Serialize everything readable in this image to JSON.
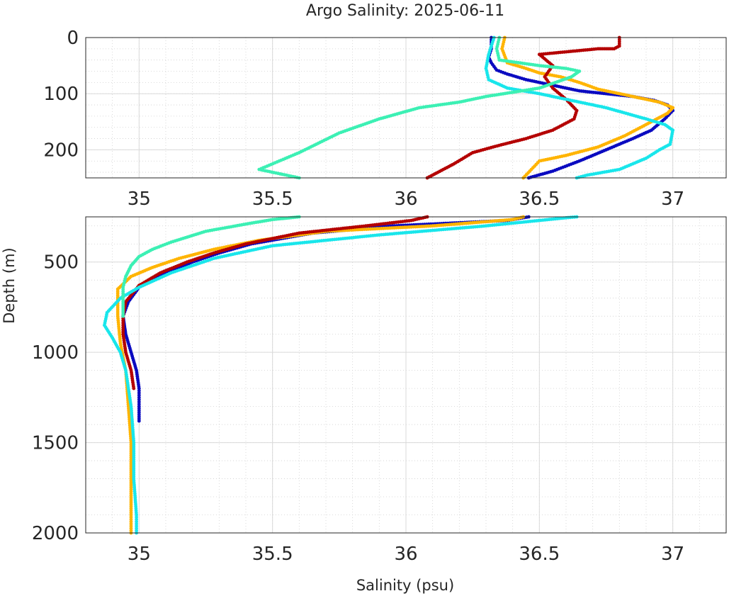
{
  "chart_data": {
    "type": "scatter",
    "title": "Argo Salinity: 2025-06-11",
    "xlabel": "Salinity (psu)",
    "ylabel": "Depth (m)",
    "xlim": [
      34.8,
      37.2
    ],
    "grid": true,
    "minor_grid": true,
    "colors": {
      "navy": "#0a0ac0",
      "orange": "#ffb400",
      "red": "#b40000",
      "aqua": "#19e6eb",
      "mint": "#3cf0b4"
    },
    "panels": [
      {
        "name": "top",
        "ylim": [
          0,
          250
        ],
        "y_reversed": true,
        "yticks": [
          "0",
          "100",
          "200"
        ],
        "ytick_values": [
          0,
          100,
          200
        ],
        "xticks": [
          "35",
          "35.5",
          "36",
          "36.5",
          "37"
        ],
        "xtick_values": [
          35,
          35.5,
          36,
          36.5,
          37
        ]
      },
      {
        "name": "bottom",
        "ylim": [
          250,
          2000
        ],
        "y_reversed": true,
        "yticks": [
          "500",
          "1000",
          "1500",
          "2000"
        ],
        "ytick_values": [
          500,
          1000,
          1500,
          2000
        ],
        "xticks": [
          "35",
          "35.5",
          "36",
          "36.5",
          "37"
        ],
        "xtick_values": [
          35,
          35.5,
          36,
          36.5,
          37
        ]
      }
    ],
    "series": [
      {
        "color": "#0a0ac0",
        "points": [
          [
            36.32,
            0
          ],
          [
            36.32,
            20
          ],
          [
            36.31,
            35
          ],
          [
            36.32,
            45
          ],
          [
            36.34,
            58
          ],
          [
            36.38,
            65
          ],
          [
            36.45,
            75
          ],
          [
            36.55,
            85
          ],
          [
            36.65,
            95
          ],
          [
            36.75,
            100
          ],
          [
            36.85,
            105
          ],
          [
            36.93,
            112
          ],
          [
            36.98,
            120
          ],
          [
            37.0,
            130
          ],
          [
            36.97,
            145
          ],
          [
            36.92,
            165
          ],
          [
            36.85,
            180
          ],
          [
            36.75,
            200
          ],
          [
            36.65,
            220
          ],
          [
            36.55,
            238
          ],
          [
            36.46,
            250
          ],
          [
            36.38,
            270
          ],
          [
            35.95,
            300
          ],
          [
            35.65,
            340
          ],
          [
            35.42,
            400
          ],
          [
            35.3,
            450
          ],
          [
            35.2,
            500
          ],
          [
            35.1,
            560
          ],
          [
            35.0,
            640
          ],
          [
            34.96,
            720
          ],
          [
            34.94,
            800
          ],
          [
            34.95,
            900
          ],
          [
            34.97,
            1000
          ],
          [
            34.99,
            1100
          ],
          [
            35.0,
            1200
          ],
          [
            35.0,
            1300
          ],
          [
            35.0,
            1380
          ]
        ]
      },
      {
        "color": "#ffb400",
        "points": [
          [
            36.37,
            0
          ],
          [
            36.36,
            20
          ],
          [
            36.38,
            45
          ],
          [
            36.45,
            55
          ],
          [
            36.5,
            63
          ],
          [
            36.58,
            70
          ],
          [
            36.65,
            80
          ],
          [
            36.72,
            92
          ],
          [
            36.85,
            105
          ],
          [
            36.95,
            115
          ],
          [
            37.0,
            125
          ],
          [
            36.98,
            135
          ],
          [
            36.92,
            150
          ],
          [
            36.82,
            175
          ],
          [
            36.72,
            195
          ],
          [
            36.6,
            210
          ],
          [
            36.5,
            220
          ],
          [
            36.47,
            235
          ],
          [
            36.44,
            250
          ],
          [
            36.4,
            265
          ],
          [
            36.1,
            300
          ],
          [
            35.7,
            330
          ],
          [
            35.45,
            380
          ],
          [
            35.28,
            430
          ],
          [
            35.15,
            480
          ],
          [
            35.05,
            530
          ],
          [
            34.97,
            580
          ],
          [
            34.92,
            650
          ],
          [
            34.92,
            800
          ],
          [
            34.93,
            950
          ],
          [
            34.95,
            1100
          ],
          [
            34.96,
            1300
          ],
          [
            34.97,
            1500
          ],
          [
            34.97,
            1700
          ],
          [
            34.97,
            1900
          ],
          [
            34.97,
            2000
          ]
        ]
      },
      {
        "color": "#b40000",
        "points": [
          [
            36.8,
            0
          ],
          [
            36.8,
            15
          ],
          [
            36.78,
            20
          ],
          [
            36.72,
            20
          ],
          [
            36.5,
            30
          ],
          [
            36.55,
            50
          ],
          [
            36.52,
            70
          ],
          [
            36.55,
            90
          ],
          [
            36.6,
            110
          ],
          [
            36.64,
            130
          ],
          [
            36.63,
            145
          ],
          [
            36.55,
            165
          ],
          [
            36.45,
            180
          ],
          [
            36.35,
            192
          ],
          [
            36.25,
            205
          ],
          [
            36.18,
            225
          ],
          [
            36.12,
            240
          ],
          [
            36.08,
            250
          ],
          [
            36.02,
            270
          ],
          [
            35.85,
            300
          ],
          [
            35.6,
            340
          ],
          [
            35.4,
            400
          ],
          [
            35.28,
            450
          ],
          [
            35.18,
            500
          ],
          [
            35.08,
            560
          ],
          [
            35.0,
            630
          ],
          [
            34.95,
            720
          ],
          [
            34.94,
            800
          ],
          [
            34.94,
            900
          ],
          [
            34.95,
            1000
          ],
          [
            34.97,
            1100
          ],
          [
            34.98,
            1200
          ]
        ]
      },
      {
        "color": "#19e6eb",
        "points": [
          [
            36.33,
            0
          ],
          [
            36.31,
            30
          ],
          [
            36.3,
            55
          ],
          [
            36.31,
            75
          ],
          [
            36.38,
            90
          ],
          [
            36.5,
            100
          ],
          [
            36.6,
            110
          ],
          [
            36.75,
            125
          ],
          [
            36.9,
            145
          ],
          [
            36.97,
            155
          ],
          [
            37.0,
            165
          ],
          [
            36.99,
            190
          ],
          [
            36.95,
            200
          ],
          [
            36.9,
            215
          ],
          [
            36.8,
            235
          ],
          [
            36.68,
            245
          ],
          [
            36.64,
            250
          ],
          [
            36.6,
            255
          ],
          [
            36.3,
            300
          ],
          [
            35.9,
            350
          ],
          [
            35.5,
            410
          ],
          [
            35.28,
            480
          ],
          [
            35.12,
            560
          ],
          [
            35.0,
            640
          ],
          [
            34.93,
            700
          ],
          [
            34.88,
            780
          ],
          [
            34.87,
            850
          ],
          [
            34.9,
            920
          ],
          [
            34.93,
            1000
          ],
          [
            34.95,
            1100
          ],
          [
            34.97,
            1300
          ],
          [
            34.98,
            1500
          ],
          [
            34.98,
            1700
          ],
          [
            34.99,
            1900
          ],
          [
            34.99,
            2000
          ]
        ]
      },
      {
        "color": "#3cf0b4",
        "points": [
          [
            36.35,
            0
          ],
          [
            36.34,
            20
          ],
          [
            36.35,
            40
          ],
          [
            36.5,
            50
          ],
          [
            36.6,
            55
          ],
          [
            36.65,
            60
          ],
          [
            36.62,
            70
          ],
          [
            36.5,
            90
          ],
          [
            36.3,
            105
          ],
          [
            36.2,
            115
          ],
          [
            36.05,
            125
          ],
          [
            35.9,
            145
          ],
          [
            35.75,
            170
          ],
          [
            35.6,
            205
          ],
          [
            35.45,
            235
          ],
          [
            35.6,
            250
          ],
          [
            35.5,
            265
          ],
          [
            35.4,
            290
          ],
          [
            35.25,
            330
          ],
          [
            35.12,
            390
          ],
          [
            35.05,
            430
          ],
          [
            35.0,
            470
          ],
          [
            34.97,
            520
          ],
          [
            34.95,
            580
          ],
          [
            34.94,
            640
          ],
          [
            34.94,
            720
          ],
          [
            34.94,
            800
          ]
        ]
      }
    ]
  }
}
